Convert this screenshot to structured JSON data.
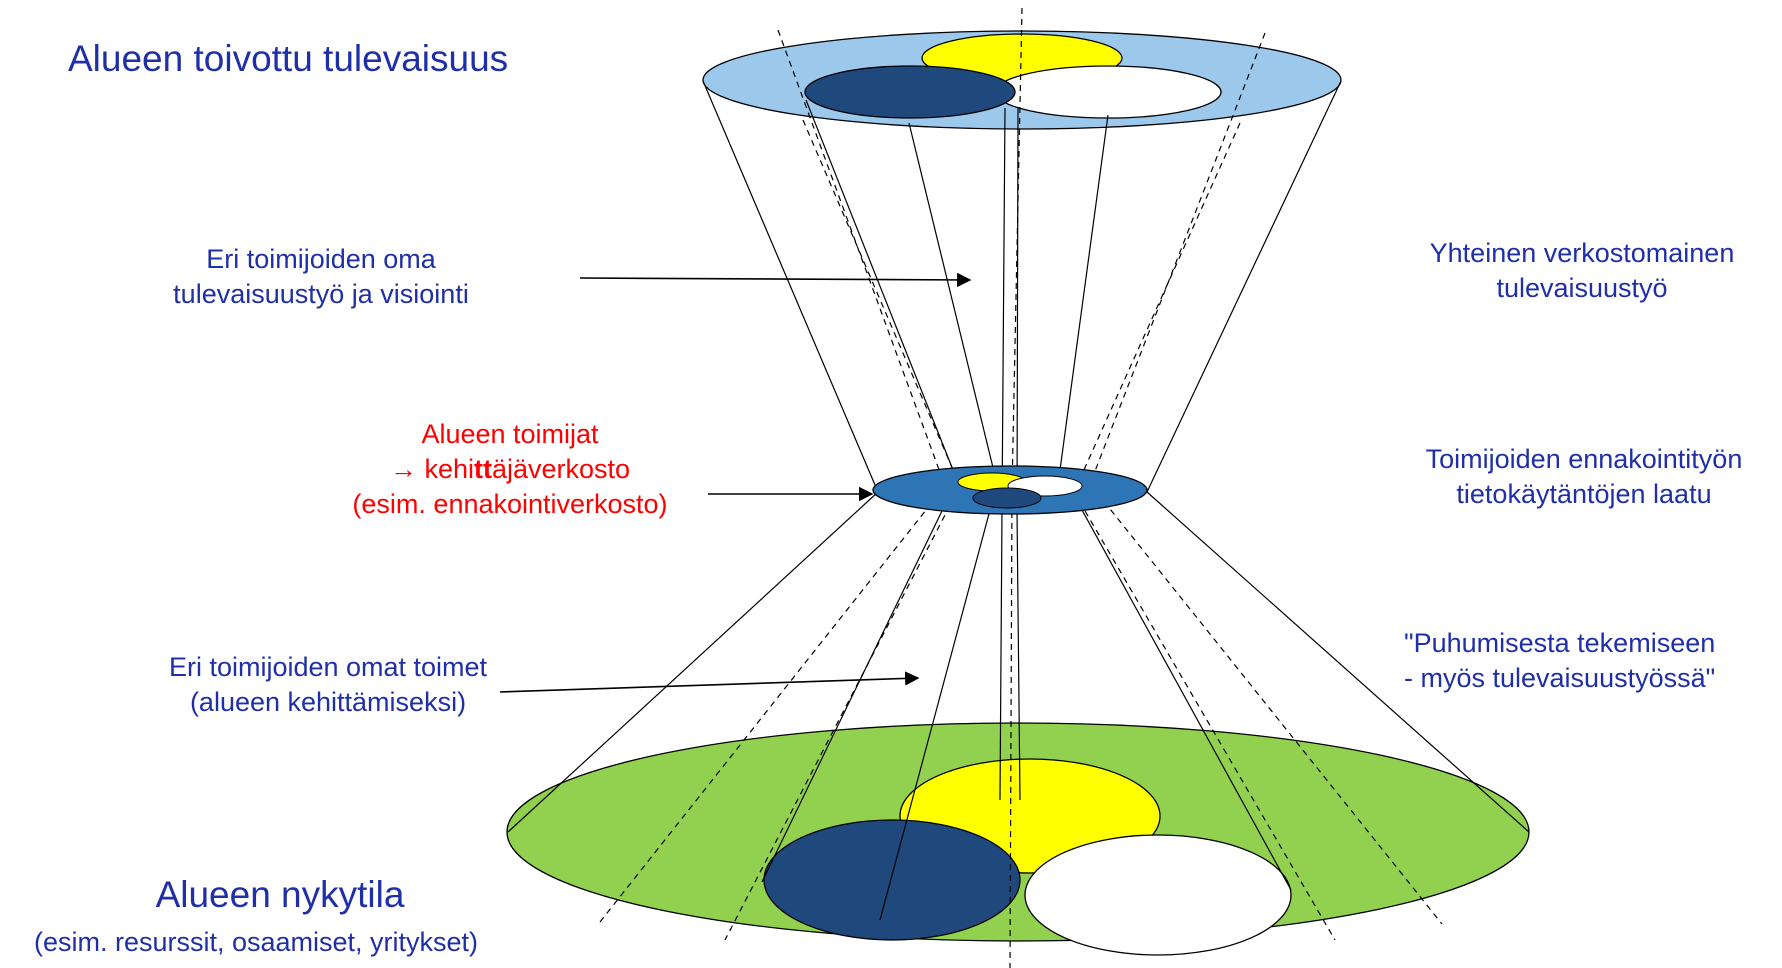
{
  "labels": {
    "future_title": "Alueen toivottu tulevaisuus",
    "own_future_work": [
      "Eri toimijoiden oma",
      "tulevaisuustyö ja visiointi"
    ],
    "network": {
      "line1": "Alueen toimijat",
      "arrow": "→",
      "line2_pre": "kehi",
      "line2_bold": "tt",
      "line2_post": "äjäverkosto",
      "line3": "(esim. ennakointiverkosto)"
    },
    "own_actions": [
      "Eri toimijoiden omat toimet",
      "(alueen kehittämiseksi)"
    ],
    "current_title": "Alueen nykytila",
    "current_sub": "(esim. resurssit, osaamiset, yritykset)",
    "joint_work": [
      "Yhteinen verkostomainen",
      "tulevaisuustyö"
    ],
    "quality": [
      "Toimijoiden ennakointityön",
      "tietokäytäntöjen laatu"
    ],
    "quote": [
      "\"Puhumisesta tekemiseen",
      "- myös tulevaisuustyössä\""
    ]
  },
  "colors": {
    "text_blue": "#1f2fa8",
    "text_red": "#ff0000",
    "top_disc": "#9cc8ec",
    "middle_disc": "#2e75b6",
    "bottom_disc": "#92d050",
    "yellow": "#ffff00",
    "navy": "#1f497d",
    "white": "#ffffff"
  }
}
